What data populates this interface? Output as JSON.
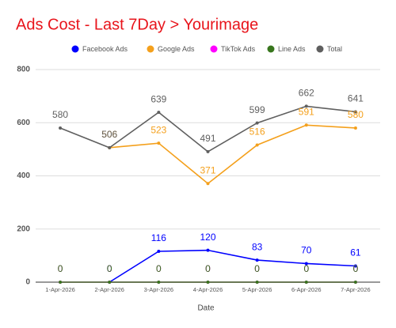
{
  "chart_data": {
    "type": "line",
    "title": "Ads Cost - Last 7Day > Yourimage",
    "x_label": "Date",
    "categories": [
      "1-Apr-2026",
      "2-Apr-2026",
      "3-Apr-2026",
      "4-Apr-2026",
      "5-Apr-2026",
      "6-Apr-2026",
      "7-Apr-2026"
    ],
    "series": [
      {
        "name": "Facebook Ads",
        "color": "#0000ff",
        "values": [
          null,
          0,
          116,
          120,
          83,
          70,
          61
        ]
      },
      {
        "name": "Google Ads",
        "color": "#f4a01c",
        "values": [
          null,
          506,
          523,
          371,
          516,
          591,
          580
        ]
      },
      {
        "name": "TikTok Ads",
        "color": "#ff00ff",
        "values": [
          0,
          0,
          0,
          0,
          0,
          0,
          0
        ]
      },
      {
        "name": "Line Ads",
        "color": "#38761d",
        "values": [
          0,
          0,
          0,
          0,
          0,
          0,
          0
        ]
      },
      {
        "name": "Total",
        "color": "#5f5f5f",
        "values": [
          580,
          506,
          639,
          491,
          599,
          662,
          641
        ]
      }
    ],
    "ylim": [
      0,
      800
    ],
    "yticks": [
      0,
      200,
      400,
      600,
      800
    ],
    "grid": true
  }
}
